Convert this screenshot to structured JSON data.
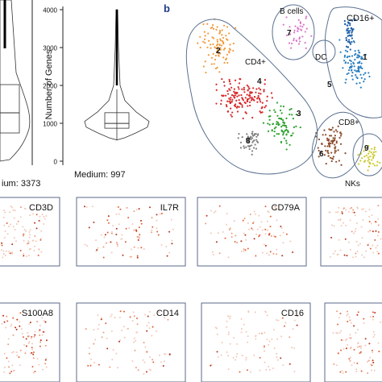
{
  "chart_data": [
    {
      "type": "violin",
      "panel_id": "left-partial",
      "ylabel": "",
      "median_label": "ium: 3373",
      "median": 3373
    },
    {
      "type": "violin",
      "panel_id": "genes-violin",
      "ylabel": "Number of Genes",
      "yticks": [
        "0",
        "1000",
        "2000",
        "3000",
        "4000"
      ],
      "ylim": [
        0,
        4000
      ],
      "median_label": "Medium: 997",
      "median": 997,
      "q1": 870,
      "q3": 1280,
      "whisker_low": 560,
      "whisker_high": 1900,
      "max": 4000
    },
    {
      "type": "scatter",
      "panel_letter": "b",
      "clusters": [
        {
          "id": "1",
          "color": "#2a7fc1"
        },
        {
          "id": "2",
          "color": "#f29a3a"
        },
        {
          "id": "3",
          "color": "#2ca02c"
        },
        {
          "id": "4",
          "color": "#d62728"
        },
        {
          "id": "5",
          "color": "#1f5fa8"
        },
        {
          "id": "6",
          "color": "#8c4b2a"
        },
        {
          "id": "7",
          "color": "#d977c9"
        },
        {
          "id": "8",
          "color": "#7f7f7f"
        },
        {
          "id": "9",
          "color": "#c9c926"
        }
      ],
      "group_labels": [
        "B cells",
        "CD16+",
        "DC",
        "CD4+",
        "CD8+",
        "NKs"
      ]
    },
    {
      "type": "scatter",
      "feature_plots": [
        {
          "gene": "CD3D"
        },
        {
          "gene": "IL7R"
        },
        {
          "gene": "CD79A"
        },
        {
          "gene": ""
        },
        {
          "gene": "S100A8"
        },
        {
          "gene": "CD14"
        },
        {
          "gene": "CD16"
        },
        {
          "gene": ""
        }
      ]
    }
  ]
}
